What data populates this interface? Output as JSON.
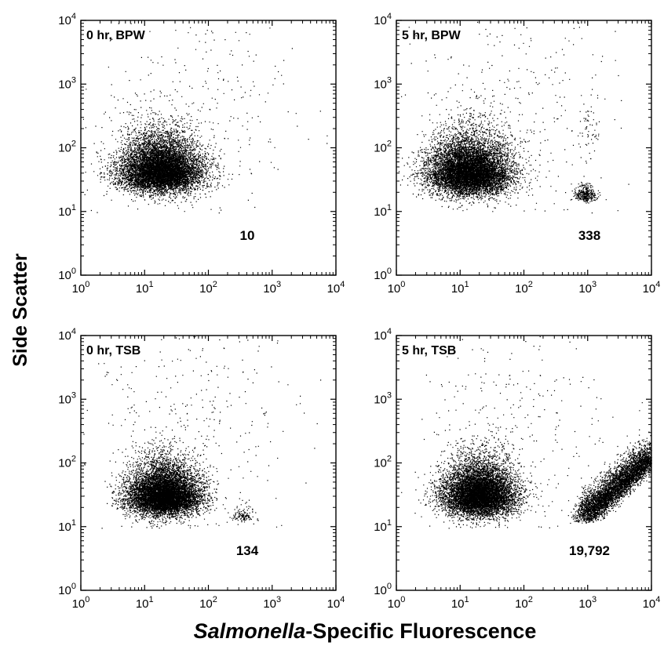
{
  "figure": {
    "ylabel": "Side Scatter",
    "xlabel_italic": "Salmonella",
    "xlabel_rest": "-Specific Fluorescence"
  },
  "chart_data": [
    {
      "type": "scatter",
      "title": "0 hr, BPW",
      "count_label": "10",
      "x_scale": "log",
      "y_scale": "log",
      "xlim": [
        1,
        10000
      ],
      "ylim": [
        1,
        10000
      ],
      "x_ticks": [
        "10^0",
        "10^1",
        "10^2",
        "10^3",
        "10^4"
      ],
      "y_ticks": [
        "10^0",
        "10^1",
        "10^2",
        "10^3",
        "10^4"
      ],
      "grid": false,
      "populations": [
        {
          "center": [
            18,
            35
          ],
          "n_points": 9000,
          "log_spread": [
            0.32,
            0.38
          ],
          "shape": "main"
        },
        {
          "center": [
            60,
            400
          ],
          "n_points": 300,
          "log_spread": [
            0.9,
            0.8
          ],
          "shape": "sparse"
        }
      ]
    },
    {
      "type": "scatter",
      "title": "5 hr, BPW",
      "count_label": "338",
      "x_scale": "log",
      "y_scale": "log",
      "xlim": [
        1,
        10000
      ],
      "ylim": [
        1,
        10000
      ],
      "x_ticks": [
        "10^0",
        "10^1",
        "10^2",
        "10^3",
        "10^4"
      ],
      "y_ticks": [
        "10^0",
        "10^1",
        "10^2",
        "10^3",
        "10^4"
      ],
      "grid": false,
      "populations": [
        {
          "center": [
            14,
            32
          ],
          "n_points": 9000,
          "log_spread": [
            0.32,
            0.4
          ],
          "shape": "main"
        },
        {
          "center": [
            60,
            400
          ],
          "n_points": 300,
          "log_spread": [
            0.9,
            0.8
          ],
          "shape": "sparse"
        },
        {
          "center": [
            900,
            17
          ],
          "n_points": 338,
          "log_spread": [
            0.08,
            0.12
          ],
          "shape": "cluster"
        },
        {
          "center": [
            1000,
            150
          ],
          "n_points": 60,
          "log_spread": [
            0.07,
            0.5
          ],
          "shape": "cluster"
        }
      ]
    },
    {
      "type": "scatter",
      "title": "0 hr, TSB",
      "count_label": "134",
      "x_scale": "log",
      "y_scale": "log",
      "xlim": [
        1,
        10000
      ],
      "ylim": [
        1,
        10000
      ],
      "x_ticks": [
        "10^0",
        "10^1",
        "10^2",
        "10^3",
        "10^4"
      ],
      "y_ticks": [
        "10^0",
        "10^1",
        "10^2",
        "10^3",
        "10^4"
      ],
      "grid": false,
      "populations": [
        {
          "center": [
            20,
            25
          ],
          "n_points": 9000,
          "log_spread": [
            0.28,
            0.35
          ],
          "shape": "main"
        },
        {
          "center": [
            60,
            400
          ],
          "n_points": 300,
          "log_spread": [
            0.9,
            0.8
          ],
          "shape": "sparse"
        },
        {
          "center": [
            350,
            14
          ],
          "n_points": 134,
          "log_spread": [
            0.1,
            0.1
          ],
          "shape": "cluster"
        }
      ]
    },
    {
      "type": "scatter",
      "title": "5 hr, TSB",
      "count_label": "19,792",
      "x_scale": "log",
      "y_scale": "log",
      "xlim": [
        1,
        10000
      ],
      "ylim": [
        1,
        10000
      ],
      "x_ticks": [
        "10^0",
        "10^1",
        "10^2",
        "10^3",
        "10^4"
      ],
      "y_ticks": [
        "10^0",
        "10^1",
        "10^2",
        "10^3",
        "10^4"
      ],
      "grid": false,
      "populations": [
        {
          "center": [
            20,
            25
          ],
          "n_points": 8500,
          "log_spread": [
            0.28,
            0.38
          ],
          "shape": "main"
        },
        {
          "center": [
            60,
            400
          ],
          "n_points": 300,
          "log_spread": [
            0.9,
            0.8
          ],
          "shape": "sparse"
        },
        {
          "center": [
            1500,
            25
          ],
          "n_points": 5000,
          "log_spread": [
            0.2,
            0.35
          ],
          "shape": "diagonal"
        }
      ]
    }
  ]
}
